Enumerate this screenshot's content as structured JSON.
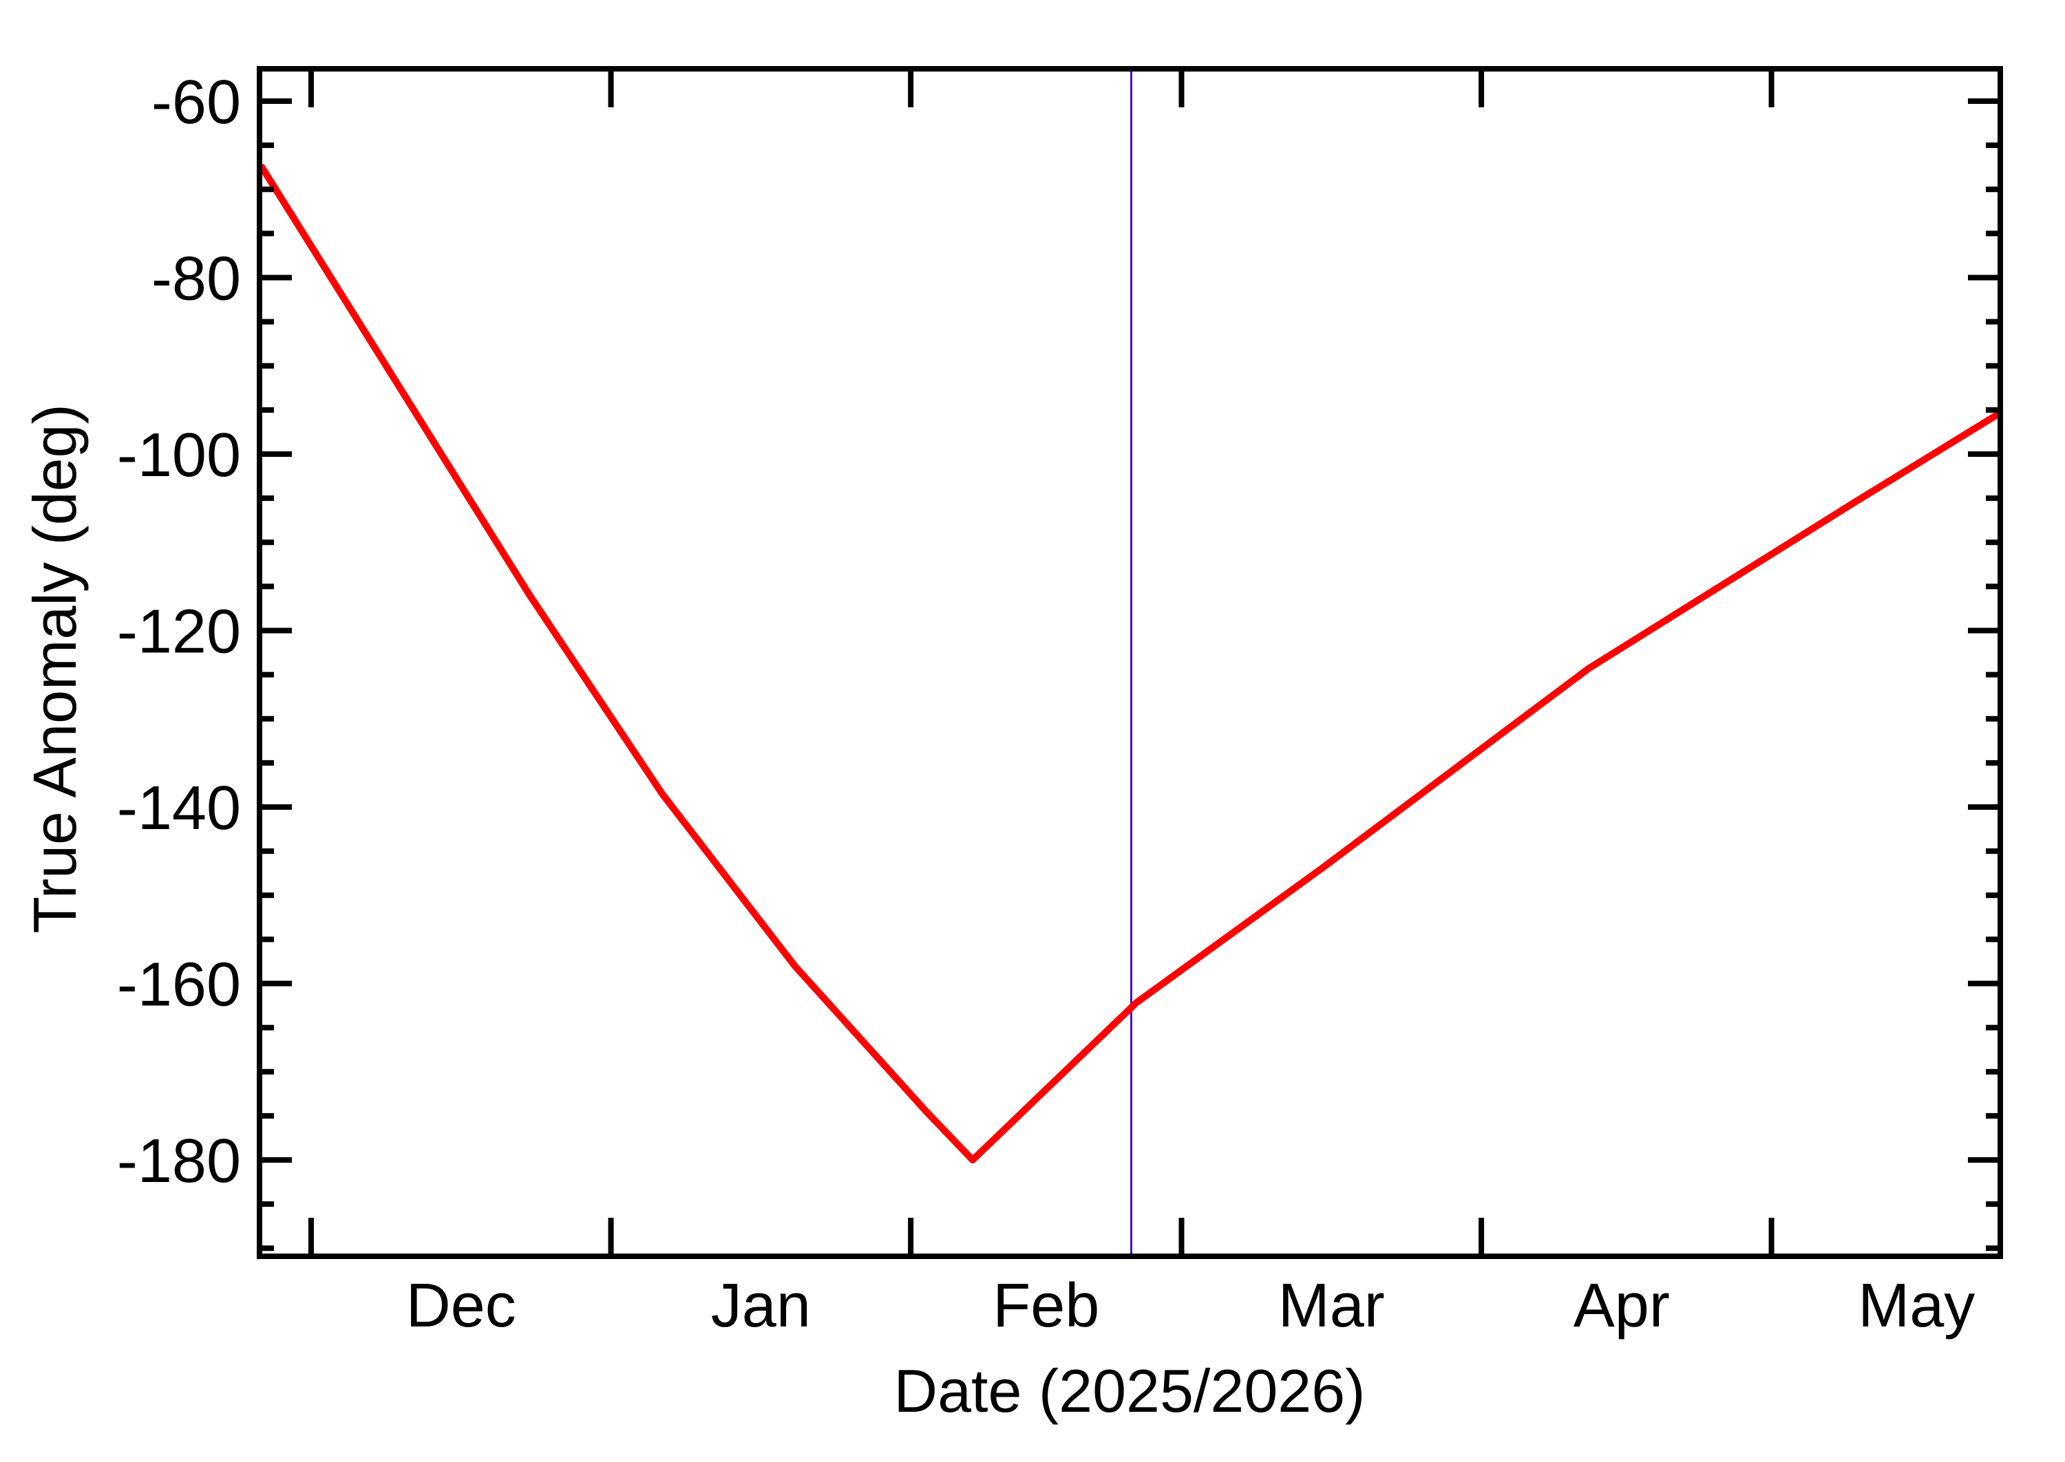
{
  "chart_data": {
    "type": "line",
    "title": "",
    "xlabel": "Date (2025/2026)",
    "ylabel": "True Anomaly (deg)",
    "x_tick_labels": [
      "Dec",
      "Jan",
      "Feb",
      "Mar",
      "Apr",
      "May"
    ],
    "x_month_starts": [
      "2025-12-01",
      "2026-01-01",
      "2026-02-01",
      "2026-03-01",
      "2026-04-01",
      "2026-05-01"
    ],
    "x_range": [
      "2025-11-26",
      "2026-05-24"
    ],
    "y_ticks": [
      -60,
      -80,
      -100,
      -120,
      -140,
      -160,
      -180
    ],
    "y_minor_step": 5,
    "ylim": [
      -191,
      -56
    ],
    "grid": false,
    "legend": null,
    "series": [
      {
        "name": "True Anomaly",
        "color": "#ff0000",
        "points": [
          {
            "date": "2025-11-26",
            "value": -67.3
          },
          {
            "date": "2025-12-10",
            "value": -92.0
          },
          {
            "date": "2025-12-24",
            "value": -116.0
          },
          {
            "date": "2026-01-06",
            "value": -138.5
          },
          {
            "date": "2026-01-20",
            "value": -158.0
          },
          {
            "date": "2026-02-03",
            "value": -174.5
          },
          {
            "date": "2026-02-07",
            "value": -180.0
          },
          {
            "date": "2026-02-24",
            "value": -162.2
          },
          {
            "date": "2026-03-15",
            "value": -146.8
          },
          {
            "date": "2026-04-12",
            "value": -124.3
          },
          {
            "date": "2026-05-09",
            "value": -105.6
          },
          {
            "date": "2026-05-24",
            "value": -95.3
          }
        ]
      }
    ],
    "annotations": [
      {
        "type": "vertical-line",
        "date": "2026-02-24",
        "color": "#4010c8",
        "label": "current date marker"
      }
    ]
  },
  "render": {
    "day_offsets_from_dec1": [
      -5.2,
      8.9,
      22.6,
      36.3,
      50.0,
      63.6,
      68.4,
      85.3,
      104.7,
      132.1,
      159.4,
      174.7
    ],
    "month_tick_days": [
      0,
      31,
      62,
      90,
      121,
      151
    ],
    "month_label_days": [
      15.5,
      46.5,
      76,
      105.5,
      135.5,
      166
    ],
    "marker_day": 84.8
  }
}
